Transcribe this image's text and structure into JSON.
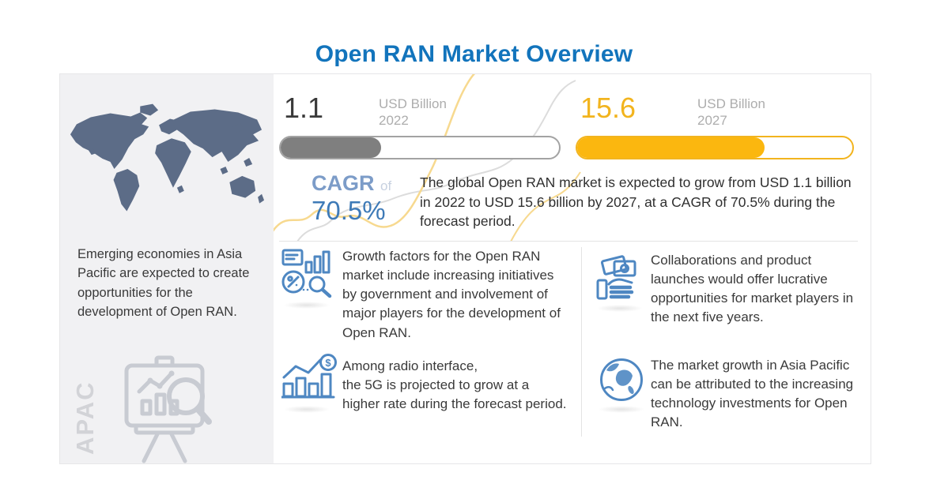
{
  "title": "Open RAN Market Overview",
  "colors": {
    "title_blue": "#1274BC",
    "bar_2022_gray": "#7f7f7f",
    "bar_2027_gold": "#fbb70f",
    "cagr_blue": "#3e7ab7",
    "icon_blue": "#4e87c2",
    "map_slate": "#5c6c87"
  },
  "left_panel": {
    "note": "Emerging economies in Asia Pacific are expected to create opportunities for the development of Open RAN.",
    "region_label": "APAC"
  },
  "market_size": {
    "start": {
      "value": "1.1",
      "unit": "USD Billion",
      "year": "2022",
      "fill_percent": 36
    },
    "end": {
      "value": "15.6",
      "unit": "USD Billion",
      "year": "2027",
      "fill_percent": 68
    }
  },
  "cagr": {
    "label": "CAGR",
    "of": "of",
    "value": "70.5%"
  },
  "summary": "The global Open RAN market is expected to grow from USD 1.1 billion in 2022 to USD 15.6 billion by 2027, at a CAGR of 70.5% during the forecast period.",
  "bullets": [
    {
      "icon": "market-analytics-icon",
      "text": "Growth factors for the Open RAN market include increasing initiatives by government and involvement of major players for the development of Open RAN."
    },
    {
      "icon": "growth-chart-dollar-icon",
      "text": "Among radio interface,\nthe 5G is projected to grow at a higher rate during the forecast period."
    },
    {
      "icon": "money-hand-icon",
      "text": "Collaborations and product launches would offer lucrative opportunities for market players in the next five years."
    },
    {
      "icon": "globe-icon",
      "text": "The market growth in Asia Pacific can be attributed to the increasing technology investments for Open RAN."
    }
  ],
  "chart_data": {
    "type": "bar",
    "categories": [
      "2022",
      "2027"
    ],
    "values": [
      1.1,
      15.6
    ],
    "unit": "USD Billion",
    "title": "Open RAN Market Overview",
    "cagr_percent": 70.5,
    "forecast_period": "2022-2027",
    "bar_fill_percent": [
      36,
      68
    ],
    "series_colors": [
      "#7f7f7f",
      "#fbb70f"
    ]
  }
}
